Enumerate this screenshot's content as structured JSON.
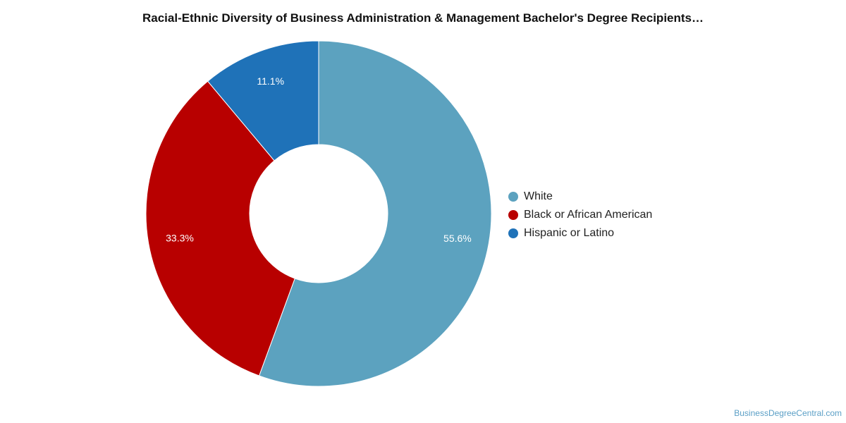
{
  "chart_data": {
    "type": "pie",
    "variant": "donut",
    "title": "Racial-Ethnic Diversity of Business Administration & Management Bachelor's Degree Recipients…",
    "categories": [
      "White",
      "Black or African American",
      "Hispanic or Latino"
    ],
    "values": [
      55.6,
      33.3,
      11.1
    ],
    "value_labels": [
      "55.6%",
      "33.3%",
      "11.1%"
    ],
    "colors": [
      "#5ca2bf",
      "#b80000",
      "#1f72b8"
    ],
    "legend_position": "right"
  },
  "watermark": "BusinessDegreeCentral.com"
}
